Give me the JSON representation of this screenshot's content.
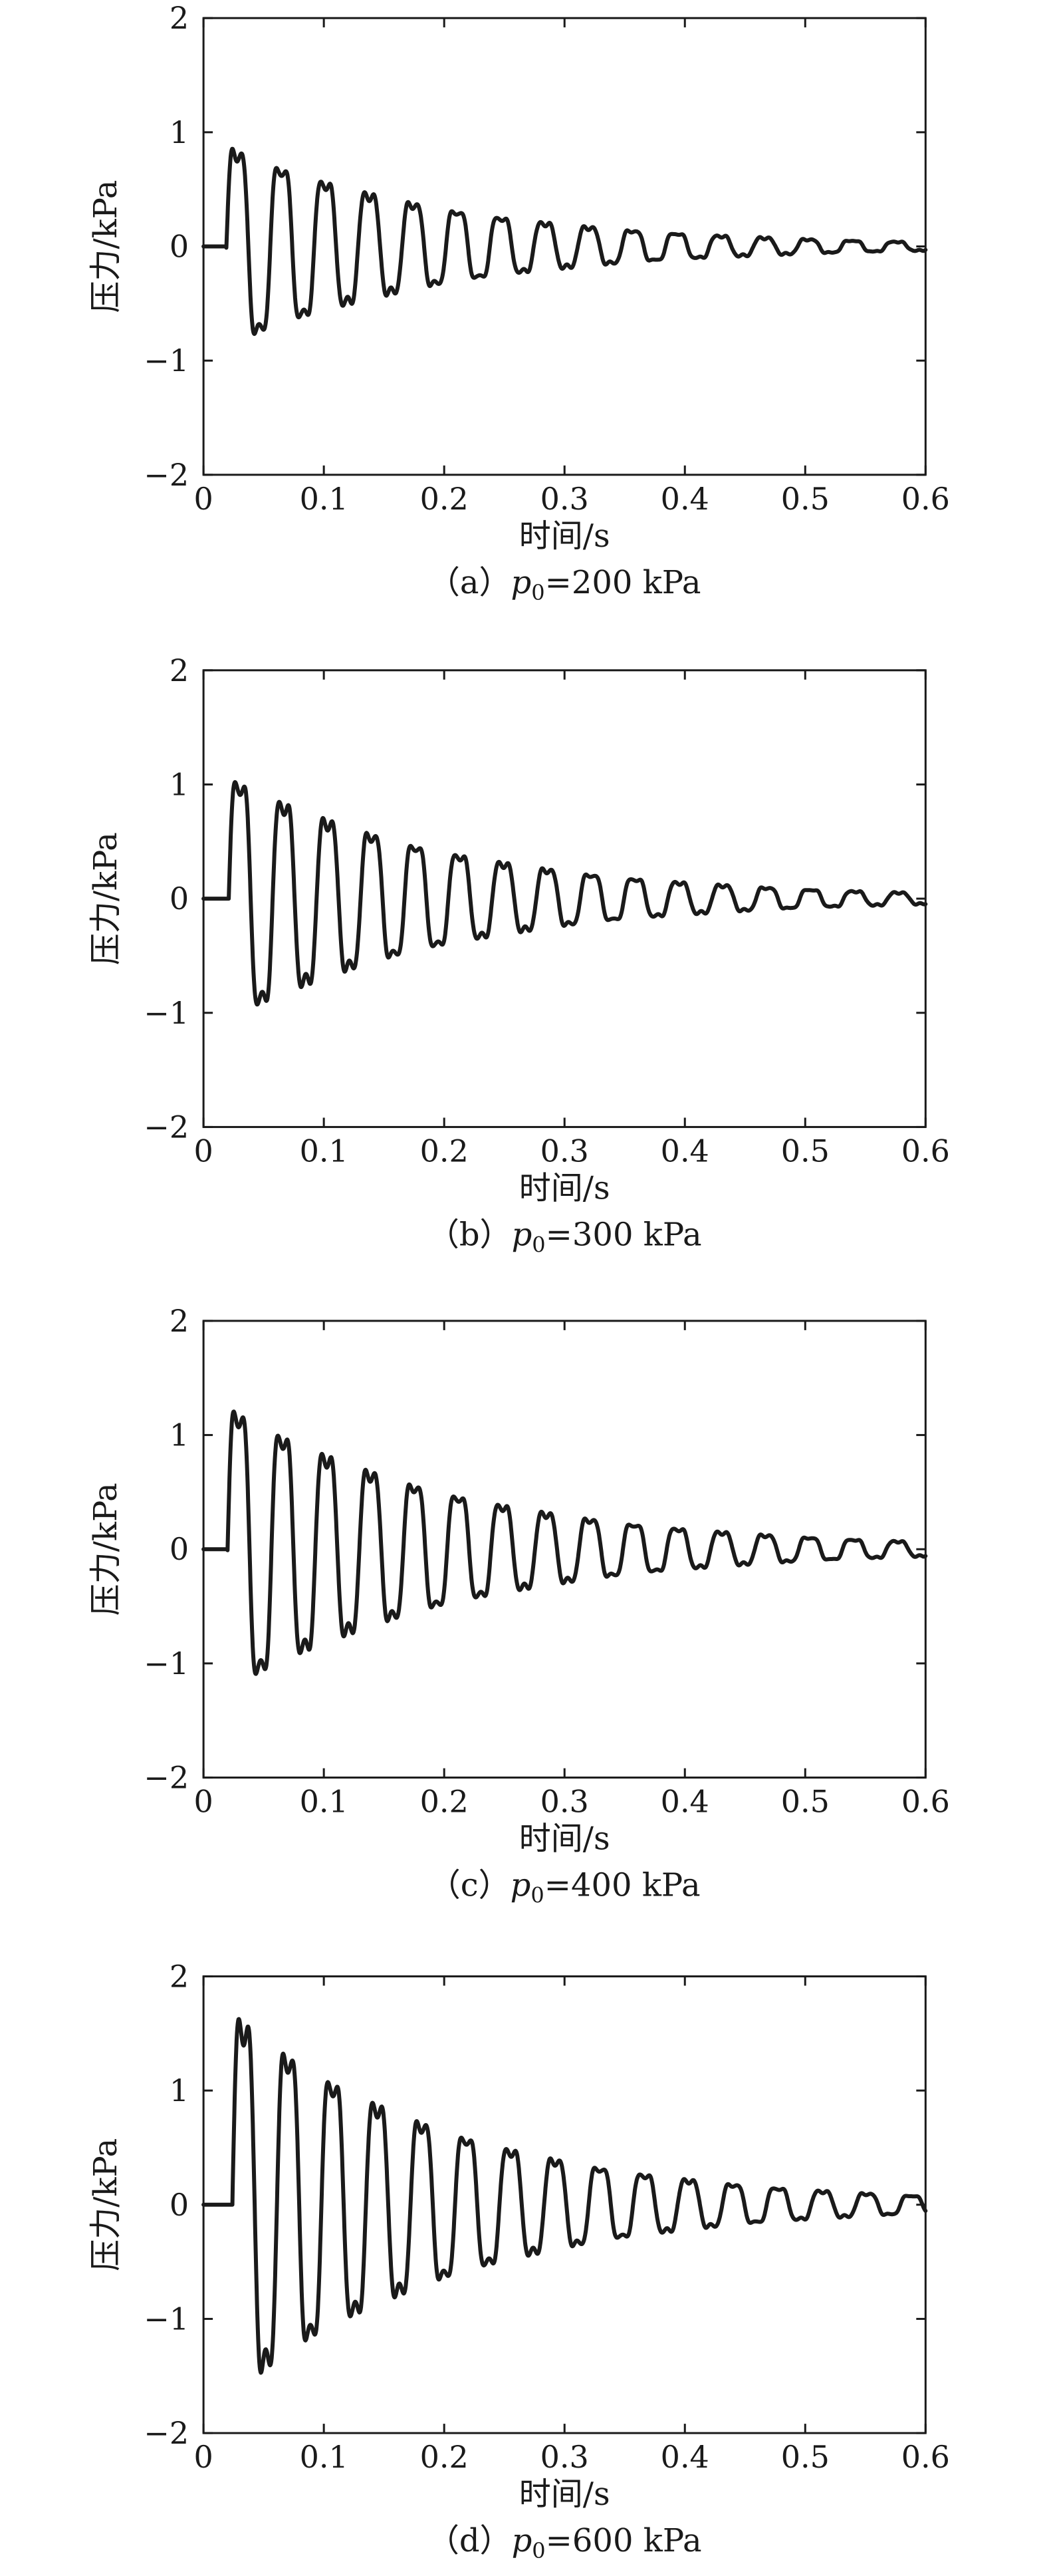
{
  "chart_data": [
    {
      "type": "line",
      "caption": {
        "prefix": "（a）",
        "var": "p",
        "sub": "0",
        "suffix": "=200 kPa"
      },
      "xlabel": "时间/s",
      "ylabel": "压力/kPa",
      "xlim": [
        0,
        0.6
      ],
      "ylim": [
        -2,
        2
      ],
      "xticks": [
        "0",
        "0.1",
        "0.2",
        "0.3",
        "0.4",
        "0.5",
        "0.6"
      ],
      "yticks": [
        "−2",
        "−1",
        "0",
        "1",
        "2"
      ],
      "grid": false,
      "series": [
        {
          "x_start": 0.019,
          "x_end": 0.6,
          "period": 0.0365,
          "amplitude": 0.95,
          "decay": 5.5,
          "offset_before_start": 0,
          "shape": "damped square-like oscillation"
        }
      ]
    },
    {
      "type": "line",
      "caption": {
        "prefix": "（b）",
        "var": "p",
        "sub": "0",
        "suffix": "=300 kPa"
      },
      "xlabel": "时间/s",
      "ylabel": "压力/kPa",
      "xlim": [
        0,
        0.6
      ],
      "ylim": [
        -2,
        2
      ],
      "xticks": [
        "0",
        "0.1",
        "0.2",
        "0.3",
        "0.4",
        "0.5",
        "0.6"
      ],
      "yticks": [
        "−2",
        "−1",
        "0",
        "1",
        "2"
      ],
      "grid": false,
      "series": [
        {
          "x_start": 0.021,
          "x_end": 0.6,
          "period": 0.0365,
          "amplitude": 1.15,
          "decay": 5.4,
          "offset_before_start": 0,
          "shape": "damped square-like oscillation"
        }
      ]
    },
    {
      "type": "line",
      "caption": {
        "prefix": "（c）",
        "var": "p",
        "sub": "0",
        "suffix": "=400 kPa"
      },
      "xlabel": "时间/s",
      "ylabel": "压力/kPa",
      "xlim": [
        0,
        0.6
      ],
      "ylim": [
        -2,
        2
      ],
      "xticks": [
        "0",
        "0.1",
        "0.2",
        "0.3",
        "0.4",
        "0.5",
        "0.6"
      ],
      "yticks": [
        "−2",
        "−1",
        "0",
        "1",
        "2"
      ],
      "grid": false,
      "series": [
        {
          "x_start": 0.02,
          "x_end": 0.6,
          "period": 0.0365,
          "amplitude": 1.35,
          "decay": 5.2,
          "offset_before_start": 0,
          "shape": "damped square-like oscillation"
        }
      ]
    },
    {
      "type": "line",
      "caption": {
        "prefix": "（d）",
        "var": "p",
        "sub": "0",
        "suffix": "=600 kPa"
      },
      "xlabel": "时间/s",
      "ylabel": "压力/kPa",
      "xlim": [
        0,
        0.6
      ],
      "ylim": [
        -2,
        2
      ],
      "xticks": [
        "0",
        "0.1",
        "0.2",
        "0.3",
        "0.4",
        "0.5",
        "0.6"
      ],
      "yticks": [
        "−2",
        "−1",
        "0",
        "1",
        "2"
      ],
      "grid": false,
      "series": [
        {
          "x_start": 0.024,
          "x_end": 0.6,
          "period": 0.037,
          "amplitude": 1.8,
          "decay": 5.4,
          "offset_before_start": 0,
          "shape": "damped square-like oscillation"
        }
      ]
    }
  ]
}
